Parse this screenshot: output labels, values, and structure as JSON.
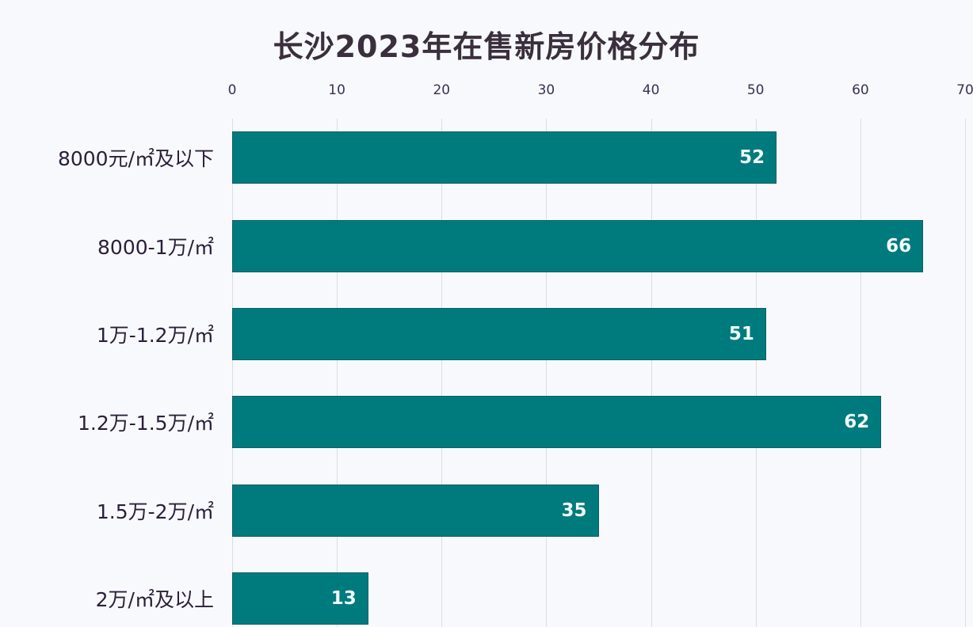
{
  "chart_data": {
    "type": "bar",
    "orientation": "horizontal",
    "title": "长沙2023年在售新房价格分布",
    "xlabel": "",
    "ylabel": "",
    "categories": [
      "8000元/㎡及以下",
      "8000-1万/㎡",
      "1万-1.2万/㎡",
      "1.2万-1.5万/㎡",
      "1.5万-2万/㎡",
      "2万/㎡及以上"
    ],
    "values": [
      52,
      66,
      51,
      62,
      35,
      13
    ],
    "xlim": [
      0,
      70
    ],
    "x_ticks": [
      "0",
      "10",
      "20",
      "30",
      "40",
      "50",
      "60",
      "70"
    ],
    "x_axis_position": "top",
    "grid": true,
    "data_labels": true,
    "legend": "none",
    "bar_color": "#007b7d"
  },
  "colors": {
    "bar": "#007b7d",
    "bar_label": "#f2fbfb",
    "title": "#3a2f3d",
    "grid": "#dcdde2",
    "background": "#f8f9fc"
  }
}
